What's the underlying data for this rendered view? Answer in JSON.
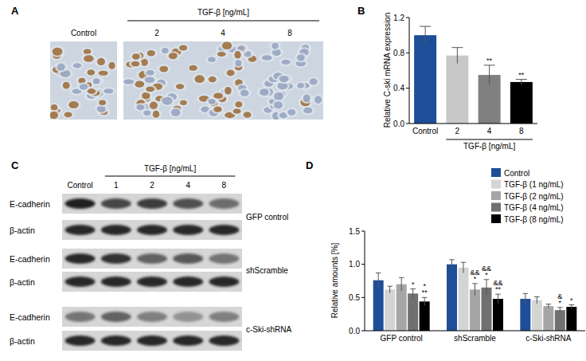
{
  "figure": {
    "panel_a": {
      "letter": "A",
      "group_label": "TGF-β [ng/mL]",
      "labels": [
        "Control",
        "2",
        "4",
        "8"
      ],
      "staining": [
        0.85,
        0.6,
        0.5,
        0.1
      ]
    },
    "panel_c": {
      "letter": "C",
      "group_label": "TGF-β [ng/mL]",
      "columns": [
        "Control",
        "1",
        "2",
        "4",
        "8"
      ],
      "blots": [
        {
          "group": "GFP control",
          "rows": [
            {
              "label": "E-cadherin",
              "bands": [
                0.95,
                0.75,
                0.8,
                0.7,
                0.55
              ]
            },
            {
              "label": "β-actin",
              "bands": [
                0.9,
                0.9,
                0.9,
                0.9,
                0.9
              ]
            }
          ]
        },
        {
          "group": "shScramble",
          "rows": [
            {
              "label": "E-cadherin",
              "bands": [
                0.9,
                0.85,
                0.6,
                0.65,
                0.5
              ]
            },
            {
              "label": "β-actin",
              "bands": [
                0.9,
                0.9,
                0.9,
                0.9,
                0.9
              ]
            }
          ]
        },
        {
          "group": "c-Ski-shRNA",
          "rows": [
            {
              "label": "E-cadherin",
              "bands": [
                0.5,
                0.6,
                0.45,
                0.35,
                0.45
              ]
            },
            {
              "label": "β-actin",
              "bands": [
                0.9,
                0.9,
                0.9,
                0.9,
                0.9
              ]
            }
          ]
        }
      ]
    }
  },
  "chart_data": [
    {
      "type": "bar",
      "letter": "B",
      "y_label": "Relative C-ski mRNA expression",
      "group_label": "TGF-β [ng/mL]",
      "categories": [
        "Control",
        "2",
        "4",
        "8"
      ],
      "values": [
        1.0,
        0.77,
        0.55,
        0.47
      ],
      "errors": [
        0.1,
        0.09,
        0.11,
        0.03
      ],
      "significance": [
        null,
        null,
        "**",
        "**"
      ],
      "colors": [
        "#1f4e99",
        "#c8c8c8",
        "#808080",
        "#000000"
      ],
      "ylim": [
        0,
        1.2
      ],
      "yticks": [
        {
          "value": 0,
          "label": "0.0"
        },
        0.4,
        0.8,
        1.2
      ],
      "grid": false
    },
    {
      "type": "bar",
      "letter": "D",
      "y_label": "Relative amounts [%]",
      "categories": [
        "GFP control",
        "shScramble",
        "c-Ski-shRNA"
      ],
      "series": [
        {
          "name": "Control",
          "color": "#1f4e99",
          "values": [
            0.76,
            1.0,
            0.48
          ],
          "errors": [
            0.11,
            0.07,
            0.08
          ],
          "significance": [
            null,
            null,
            null
          ]
        },
        {
          "name": "TGF-β (1 ng/mL)",
          "color": "#d4d4d4",
          "values": [
            0.62,
            0.95,
            0.46
          ],
          "errors": [
            0.05,
            0.08,
            0.05
          ],
          "significance": [
            null,
            null,
            null
          ]
        },
        {
          "name": "TGF-β (2 ng/mL)",
          "color": "#a6a6a6",
          "values": [
            0.7,
            0.62,
            0.37
          ],
          "errors": [
            0.1,
            0.09,
            0.03
          ],
          "significance": [
            null,
            [
              "&&",
              "*"
            ],
            null
          ]
        },
        {
          "name": "TGF-β (4 ng/mL)",
          "color": "#707070",
          "values": [
            0.56,
            0.65,
            0.31
          ],
          "errors": [
            0.07,
            0.12,
            0.04
          ],
          "significance": [
            [
              "*"
            ],
            [
              "&&",
              "*"
            ],
            [
              "&",
              "*"
            ]
          ]
        },
        {
          "name": "TGF-β (8 ng/mL)",
          "color": "#000000",
          "values": [
            0.44,
            0.48,
            0.36
          ],
          "errors": [
            0.06,
            0.07,
            0.03
          ],
          "significance": [
            [
              "*",
              "**"
            ],
            [
              "&&",
              "**"
            ],
            [
              "*"
            ]
          ]
        }
      ],
      "ylim": [
        0,
        1.5
      ],
      "yticks": [
        {
          "value": 0,
          "label": "0.0"
        },
        0.5,
        {
          "value": 1,
          "label": "1.0"
        },
        1.5
      ],
      "legend": "upper right",
      "grid": false
    }
  ]
}
